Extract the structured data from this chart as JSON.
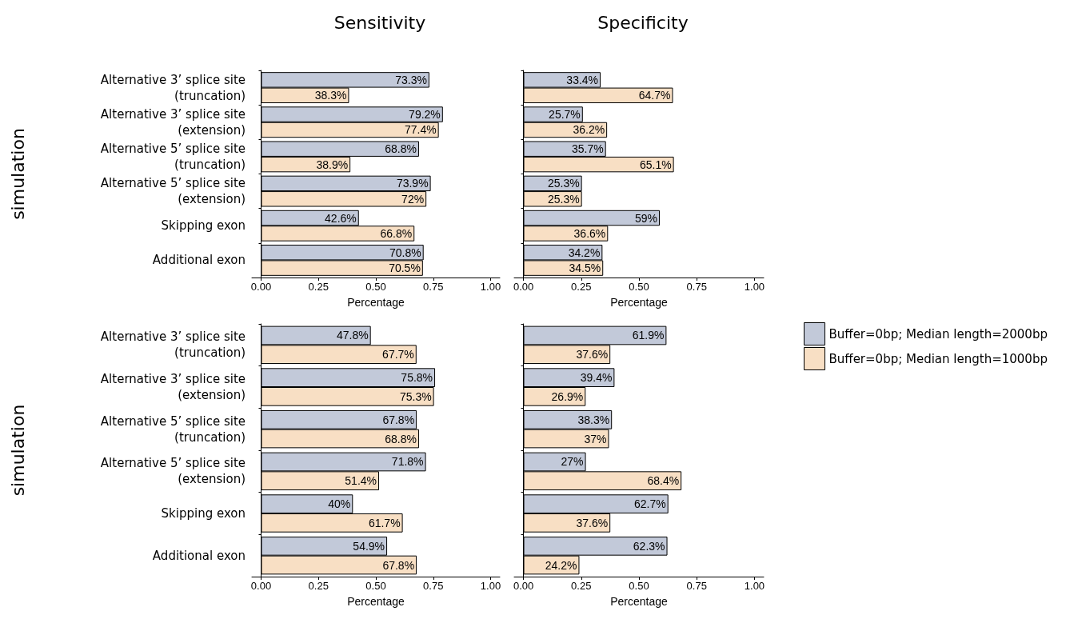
{
  "chart_data": [
    {
      "type": "bar",
      "orientation": "horizontal",
      "title": "Sensitivity",
      "ylabel": "simulation",
      "xlabel": "Percentage",
      "categories": [
        "Alternative 3’ splice site\n(truncation)",
        "Alternative 3’ splice site\n(extension)",
        "Alternative 5’ splice site\n(truncation)",
        "Alternative 5’ splice site\n(extension)",
        "Skipping exon",
        "Additional exon"
      ],
      "xlim": [
        -0.04,
        1.04
      ],
      "xticks": [
        {
          "value": 0,
          "label": "0.00"
        },
        {
          "value": 0.25,
          "label": "0.25"
        },
        {
          "value": 0.5,
          "label": "0.50"
        },
        {
          "value": 0.75,
          "label": "0.75"
        },
        {
          "value": 1,
          "label": "1.00"
        }
      ],
      "series": [
        {
          "color": "#c2c9d9",
          "values": [
            0.733,
            0.792,
            0.688,
            0.739,
            0.426,
            0.708
          ],
          "value_labels": [
            "73.3%",
            "79.2%",
            "68.8%",
            "73.9%",
            "42.6%",
            "70.8%"
          ]
        },
        {
          "color": "#f8dfc4",
          "values": [
            0.383,
            0.774,
            0.389,
            0.72,
            0.668,
            0.705
          ],
          "value_labels": [
            "38.3%",
            "77.4%",
            "38.9%",
            "72%",
            "66.8%",
            "70.5%"
          ]
        }
      ]
    },
    {
      "type": "bar",
      "orientation": "horizontal",
      "title": "Specificity",
      "xlabel": "Percentage",
      "tick_labels": "x",
      "categories": [
        null,
        null,
        null,
        null,
        null,
        null
      ],
      "xlim": [
        -0.04,
        1.04
      ],
      "xticks": [
        {
          "value": 0,
          "label": "0.00"
        },
        {
          "value": 0.25,
          "label": "0.25"
        },
        {
          "value": 0.5,
          "label": "0.50"
        },
        {
          "value": 0.75,
          "label": "0.75"
        },
        {
          "value": 1,
          "label": "1.00"
        }
      ],
      "series": [
        {
          "color": "#c2c9d9",
          "values": [
            0.334,
            0.257,
            0.357,
            0.253,
            0.59,
            0.342
          ],
          "value_labels": [
            "33.4%",
            "25.7%",
            "35.7%",
            "25.3%",
            "59%",
            "34.2%"
          ]
        },
        {
          "color": "#f8dfc4",
          "values": [
            0.647,
            0.362,
            0.651,
            0.253,
            0.366,
            0.345
          ],
          "value_labels": [
            "64.7%",
            "36.2%",
            "65.1%",
            "25.3%",
            "36.6%",
            "34.5%"
          ]
        }
      ]
    },
    {
      "type": "bar",
      "orientation": "horizontal",
      "ylabel": "simulation",
      "xlabel": "Percentage",
      "categories": [
        "Alternative 3’ splice site\n(truncation)",
        "Alternative 3’ splice site\n(extension)",
        "Alternative 5’ splice site\n(truncation)",
        "Alternative 5’ splice site\n(extension)",
        "Skipping exon",
        "Additional exon"
      ],
      "xlim": [
        -0.04,
        1.04
      ],
      "xticks": [
        {
          "value": 0,
          "label": "0.00"
        },
        {
          "value": 0.25,
          "label": "0.25"
        },
        {
          "value": 0.5,
          "label": "0.50"
        },
        {
          "value": 0.75,
          "label": "0.75"
        },
        {
          "value": 1,
          "label": "1.00"
        }
      ],
      "series": [
        {
          "color": "#c2c9d9",
          "values": [
            0.478,
            0.758,
            0.678,
            0.718,
            0.4,
            0.549
          ],
          "value_labels": [
            "47.8%",
            "75.8%",
            "67.8%",
            "71.8%",
            "40%",
            "54.9%"
          ]
        },
        {
          "color": "#f8dfc4",
          "values": [
            0.677,
            0.753,
            0.688,
            0.514,
            0.617,
            0.678
          ],
          "value_labels": [
            "67.7%",
            "75.3%",
            "68.8%",
            "51.4%",
            "61.7%",
            "67.8%"
          ]
        }
      ]
    },
    {
      "type": "bar",
      "orientation": "horizontal",
      "xlabel": "Percentage",
      "tick_labels": "x",
      "legend": "right",
      "categories": [
        null,
        null,
        null,
        null,
        null,
        null
      ],
      "xlim": [
        -0.04,
        1.04
      ],
      "xticks": [
        {
          "value": 0,
          "label": "0.00"
        },
        {
          "value": 0.25,
          "label": "0.25"
        },
        {
          "value": 0.5,
          "label": "0.50"
        },
        {
          "value": 0.75,
          "label": "0.75"
        },
        {
          "value": 1,
          "label": "1.00"
        }
      ],
      "series": [
        {
          "name": "Buffer=0bp; Median length=2000bp",
          "color": "#c2c9d9",
          "values": [
            0.619,
            0.394,
            0.383,
            0.27,
            0.627,
            0.623
          ],
          "value_labels": [
            "61.9%",
            "39.4%",
            "38.3%",
            "27%",
            "62.7%",
            "62.3%"
          ]
        },
        {
          "name": "Buffer=0bp; Median length=1000bp",
          "color": "#f8dfc4",
          "values": [
            0.376,
            0.269,
            0.37,
            0.684,
            0.376,
            0.242
          ],
          "value_labels": [
            "37.6%",
            "26.9%",
            "37%",
            "68.4%",
            "37.6%",
            "24.2%"
          ]
        }
      ]
    }
  ]
}
